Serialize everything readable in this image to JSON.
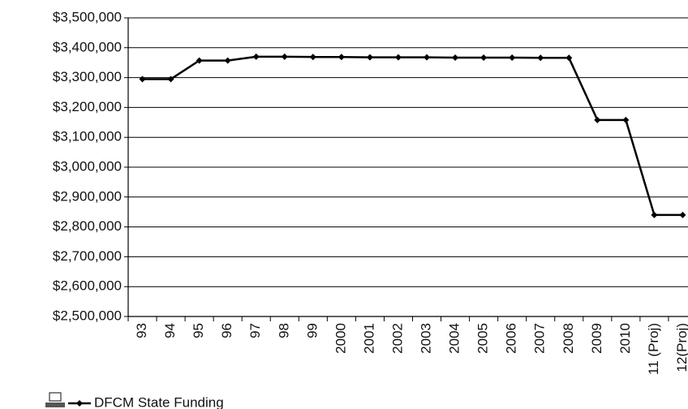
{
  "chart_data": {
    "type": "line",
    "categories": [
      "93",
      "94",
      "95",
      "96",
      "97",
      "98",
      "99",
      "2000",
      "2001",
      "2002",
      "2003",
      "2004",
      "2005",
      "2006",
      "2007",
      "2008",
      "2009",
      "2010",
      "11 (Proj)",
      "12(Proj)"
    ],
    "series": [
      {
        "name": "DFCM State Funding",
        "color": "#000000",
        "values": [
          3295000,
          3295000,
          3357000,
          3357000,
          3370000,
          3370000,
          3369000,
          3369000,
          3368000,
          3368000,
          3368000,
          3367000,
          3367000,
          3367000,
          3366000,
          3366000,
          3158000,
          3158000,
          2840000,
          2840000
        ]
      }
    ],
    "ylim": [
      2500000,
      3500000
    ],
    "yticks": [
      {
        "value": 2500000,
        "label": "$2,500,000"
      },
      {
        "value": 2600000,
        "label": "$2,600,000"
      },
      {
        "value": 2700000,
        "label": "$2,700,000"
      },
      {
        "value": 2800000,
        "label": "$2,800,000"
      },
      {
        "value": 2900000,
        "label": "$2,900,000"
      },
      {
        "value": 3000000,
        "label": "$3,000,000"
      },
      {
        "value": 3100000,
        "label": "$3,100,000"
      },
      {
        "value": 3200000,
        "label": "$3,200,000"
      },
      {
        "value": 3300000,
        "label": "$3,300,000"
      },
      {
        "value": 3400000,
        "label": "$3,400,000"
      },
      {
        "value": 3500000,
        "label": "$3,500,000"
      }
    ],
    "grid": true
  }
}
